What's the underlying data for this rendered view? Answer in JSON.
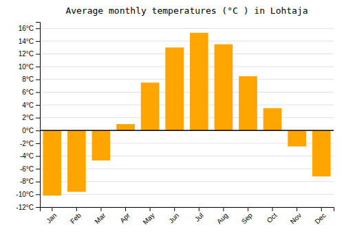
{
  "chart_data": {
    "type": "bar",
    "title": "Average monthly temperatures (°C ) in Lohtaja",
    "categories": [
      "Jan",
      "Feb",
      "Mar",
      "Apr",
      "May",
      "Jun",
      "Jul",
      "Aug",
      "Sep",
      "Oct",
      "Nov",
      "Dec"
    ],
    "values": [
      -10.2,
      -9.6,
      -4.7,
      1.0,
      7.5,
      13.0,
      15.3,
      13.5,
      8.5,
      3.5,
      -2.5,
      -7.2
    ],
    "color": "#FFA500",
    "ylim": [
      -12,
      17
    ],
    "yticks": [
      {
        "value": -12,
        "label": "-12°C"
      },
      {
        "value": -10,
        "label": "-10°C"
      },
      {
        "value": -8,
        "label": "-8°C"
      },
      {
        "value": -6,
        "label": "-6°C"
      },
      {
        "value": -4,
        "label": "-4°C"
      },
      {
        "value": -2,
        "label": "-2°C"
      },
      {
        "value": 0,
        "label": "0°C"
      },
      {
        "value": 2,
        "label": "2°C"
      },
      {
        "value": 4,
        "label": "4°C"
      },
      {
        "value": 6,
        "label": "6°C"
      },
      {
        "value": 8,
        "label": "8°C"
      },
      {
        "value": 10,
        "label": "10°C"
      },
      {
        "value": 12,
        "label": "12°C"
      },
      {
        "value": 14,
        "label": "14°C"
      },
      {
        "value": 16,
        "label": "16°C"
      }
    ],
    "grid": true
  }
}
